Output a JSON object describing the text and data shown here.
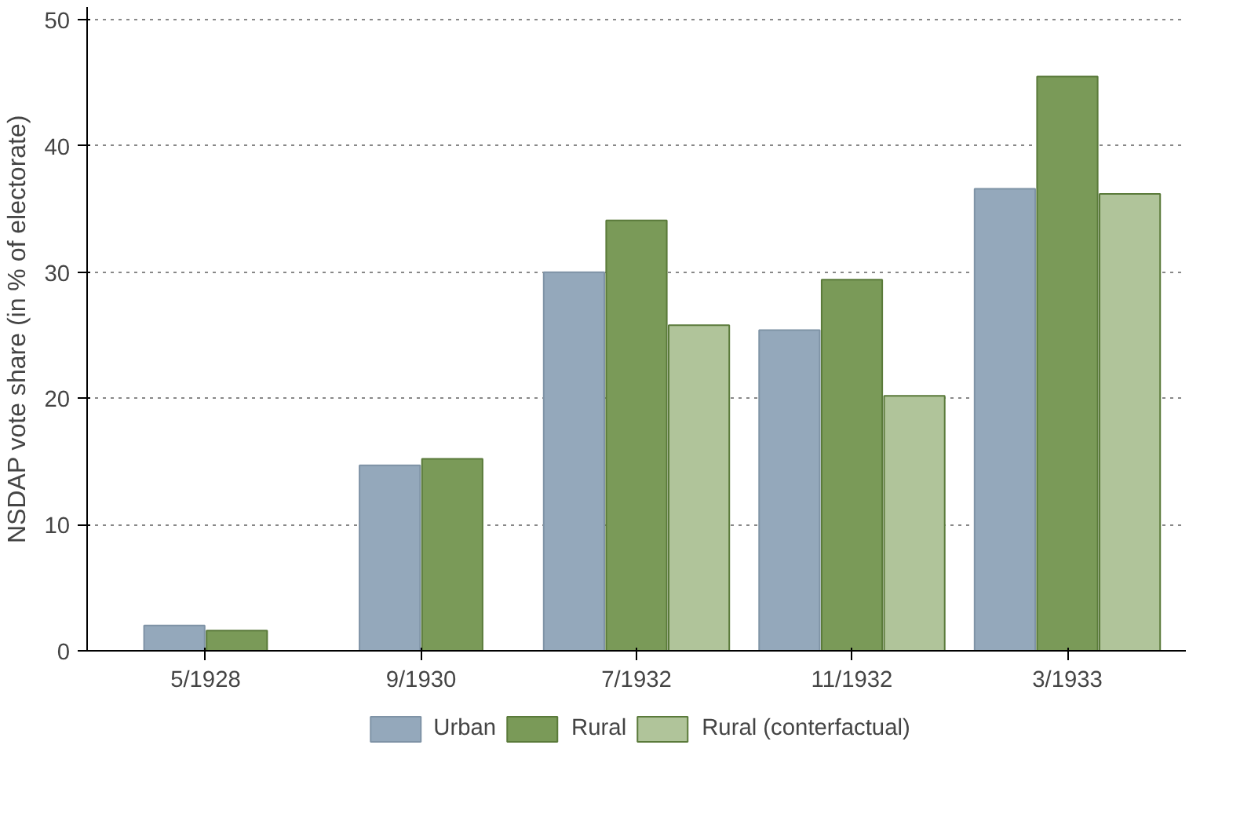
{
  "chart_data": {
    "type": "bar",
    "ylabel": "NSDAP vote share (in % of electorate)",
    "categories": [
      "5/1928",
      "9/1930",
      "7/1932",
      "11/1932",
      "3/1933"
    ],
    "series": [
      {
        "name": "Urban",
        "color": "#94a8bb",
        "values": [
          2.0,
          14.7,
          30.0,
          25.4,
          36.6
        ]
      },
      {
        "name": "Rural",
        "color": "#7a9a58",
        "values": [
          1.6,
          15.2,
          34.1,
          29.4,
          45.5
        ]
      },
      {
        "name": "Rural (conterfactual)",
        "color": "#b0c49a",
        "values": [
          null,
          null,
          25.8,
          20.2,
          36.2
        ]
      }
    ],
    "ylim": [
      0,
      51
    ],
    "yticks": [
      0,
      10,
      20,
      30,
      40,
      50
    ],
    "grid": "y",
    "legend": "bottom"
  }
}
